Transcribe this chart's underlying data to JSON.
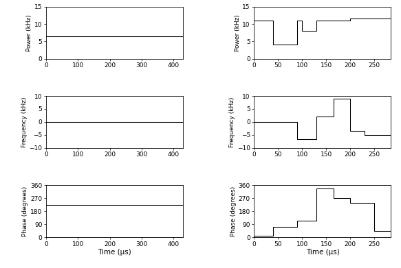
{
  "left": {
    "power": {
      "x": [
        0,
        430
      ],
      "y": [
        6.5,
        6.5
      ],
      "xlim": [
        0,
        430
      ],
      "ylim": [
        0,
        15
      ],
      "yticks": [
        0,
        5,
        10,
        15
      ],
      "xticks": [
        0,
        100,
        200,
        300,
        400
      ],
      "ylabel": "Power (kHz)"
    },
    "frequency": {
      "x": [
        0,
        430
      ],
      "y": [
        0,
        0
      ],
      "xlim": [
        0,
        430
      ],
      "ylim": [
        -10,
        10
      ],
      "yticks": [
        -10,
        -5,
        0,
        5,
        10
      ],
      "xticks": [
        0,
        100,
        200,
        300,
        400
      ],
      "ylabel": "Frequency (kHz)"
    },
    "phase": {
      "x": [
        0,
        430
      ],
      "y": [
        225,
        225
      ],
      "xlim": [
        0,
        430
      ],
      "ylim": [
        0,
        360
      ],
      "yticks": [
        0,
        90,
        180,
        270,
        360
      ],
      "xticks": [
        0,
        100,
        200,
        300,
        400
      ],
      "ylabel": "Phase (degrees)",
      "xlabel": "Time (μs)"
    }
  },
  "right": {
    "power": {
      "x": [
        0,
        40,
        40,
        90,
        90,
        100,
        100,
        130,
        130,
        165,
        165,
        200,
        200,
        285
      ],
      "y": [
        11,
        11,
        4,
        4,
        11,
        11,
        8,
        8,
        11,
        11,
        11,
        11,
        11.5,
        11.5
      ],
      "xlim": [
        0,
        285
      ],
      "ylim": [
        0,
        15
      ],
      "yticks": [
        0,
        5,
        10,
        15
      ],
      "xticks": [
        0,
        50,
        100,
        150,
        200,
        250
      ],
      "ylabel": "Power (kHz)"
    },
    "frequency": {
      "x": [
        0,
        90,
        90,
        130,
        130,
        165,
        165,
        200,
        200,
        230,
        230,
        285
      ],
      "y": [
        0,
        0,
        -6.5,
        -6.5,
        2,
        2,
        9,
        9,
        -3.5,
        -3.5,
        -5,
        -5
      ],
      "xlim": [
        0,
        285
      ],
      "ylim": [
        -10,
        10
      ],
      "yticks": [
        -10,
        -5,
        0,
        5,
        10
      ],
      "xticks": [
        0,
        50,
        100,
        150,
        200,
        250
      ],
      "ylabel": "Frequency (kHz)"
    },
    "phase": {
      "x": [
        0,
        40,
        40,
        90,
        90,
        130,
        130,
        165,
        165,
        200,
        200,
        250,
        250,
        285
      ],
      "y": [
        10,
        10,
        70,
        70,
        115,
        115,
        340,
        340,
        270,
        270,
        240,
        240,
        45,
        45
      ],
      "xlim": [
        0,
        285
      ],
      "ylim": [
        0,
        360
      ],
      "yticks": [
        0,
        90,
        180,
        270,
        360
      ],
      "xticks": [
        0,
        50,
        100,
        150,
        200,
        250
      ],
      "ylabel": "Phase (degrees)",
      "xlabel": "Time (μs)"
    }
  },
  "line_color": "#000000",
  "bg_color": "#ffffff",
  "fig_width": 5.83,
  "fig_height": 3.91,
  "dpi": 100
}
